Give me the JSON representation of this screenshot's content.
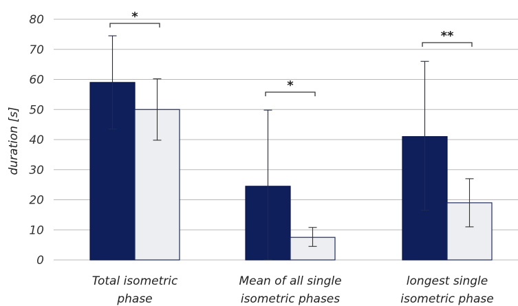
{
  "chart_data": {
    "type": "bar",
    "title": "",
    "xlabel": "",
    "ylabel": "duration [s]",
    "ylim": [
      0,
      80
    ],
    "yticks": [
      0,
      10,
      20,
      30,
      40,
      50,
      60,
      70,
      80
    ],
    "grid": true,
    "legend": "none",
    "categories": [
      [
        "Total isometric",
        "phase"
      ],
      [
        "Mean of all single",
        "isometric phases"
      ],
      [
        "longest single",
        "isometric phase"
      ]
    ],
    "series": [
      {
        "color": "#0f1f5c",
        "values": [
          59,
          24.5,
          41
        ],
        "error_low": [
          43.5,
          0,
          16.5
        ],
        "error_high": [
          74.5,
          49.8,
          66
        ]
      },
      {
        "color": "#eceef2",
        "values": [
          50,
          7.5,
          19
        ],
        "error_low": [
          39.8,
          4.5,
          11
        ],
        "error_high": [
          60.2,
          10.8,
          27
        ]
      }
    ],
    "significance": [
      "*",
      "*",
      "**"
    ]
  }
}
